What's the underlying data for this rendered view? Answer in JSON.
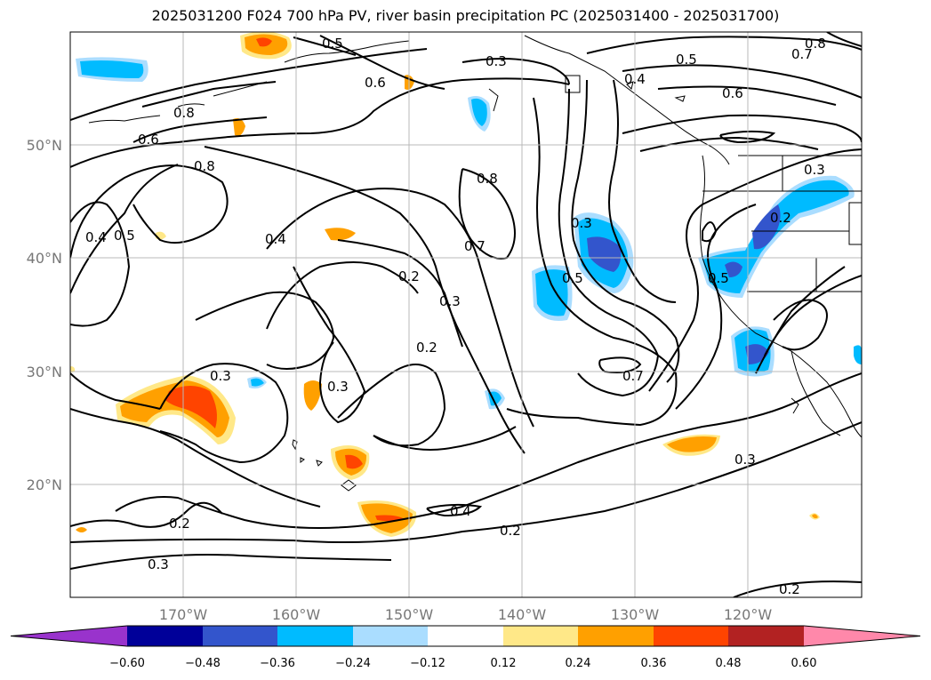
{
  "title": "2025031200 F024 700 hPa PV, river basin precipitation PC (2025031400 - 2025031700)",
  "map": {
    "lat_labels": [
      "50°N",
      "40°N",
      "30°N",
      "20°N"
    ],
    "lon_labels": [
      "170°W",
      "160°W",
      "150°W",
      "140°W",
      "130°W",
      "120°W"
    ],
    "gridlines": true,
    "contour_color": "#000000",
    "contour_labels": [
      "0.5",
      "0.3",
      "0.6",
      "0.4",
      "0.5",
      "0.8",
      "0.7",
      "0.6",
      "0.8",
      "0.6",
      "0.8",
      "0.4",
      "0.5",
      "0.4",
      "0.8",
      "0.7",
      "0.2",
      "0.3",
      "0.5",
      "0.3",
      "0.5",
      "0.2",
      "0.2",
      "0.3",
      "0.7",
      "0.3",
      "0.4",
      "0.2",
      "0.2",
      "0.3",
      "0.3",
      "0.2"
    ]
  },
  "colorbar": {
    "ticks": [
      "−0.60",
      "−0.48",
      "−0.36",
      "−0.24",
      "−0.12",
      "0.12",
      "0.24",
      "0.36",
      "0.48",
      "0.60"
    ],
    "colors": [
      "#9933CC",
      "#000099",
      "#3355CC",
      "#00BBFF",
      "#AADDFF",
      "#FFFFFF",
      "#FFE888",
      "#FFA000",
      "#FF4400",
      "#B22222",
      "#FF88AA"
    ],
    "extend": "both"
  }
}
